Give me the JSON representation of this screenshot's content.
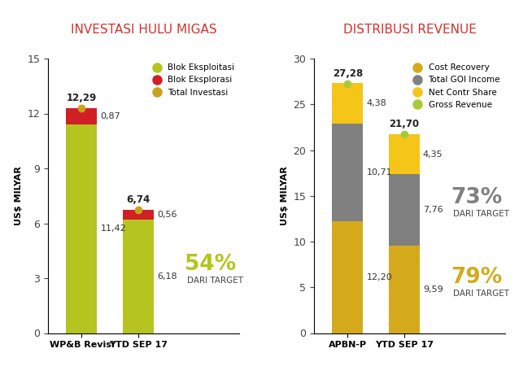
{
  "chart_data": [
    {
      "type": "bar",
      "title": "INVESTASI HULU MIGAS",
      "y_label": "US$ MILYAR",
      "stacked": true,
      "data_labels": true,
      "legend": "upper right",
      "grid": false,
      "categories": [
        "WP&B Revisi",
        "YTD SEP 17"
      ],
      "series": [
        {
          "name": "Blok Eksploitasi",
          "color": "#b5c41e",
          "values": [
            11.42,
            6.18
          ],
          "value_labels": [
            "11,42",
            "6,18"
          ]
        },
        {
          "name": "Blok Eksplorasi",
          "color": "#d11f26",
          "values": [
            0.87,
            0.56
          ],
          "value_labels": [
            "0,87",
            "0,56"
          ]
        },
        {
          "name": "Total Investasi",
          "color": "#c9a21c",
          "type": "point",
          "marker": "o",
          "values": [
            12.29,
            6.74
          ],
          "value_labels": [
            "12,29",
            "6,74"
          ]
        }
      ],
      "ylim": [
        0,
        15
      ],
      "yticks": [
        0,
        3,
        6,
        9,
        12,
        15
      ],
      "annotations": [
        {
          "text": "54%",
          "subtext": "DARI TARGET",
          "series": "Blok Eksploitasi",
          "category": "YTD SEP 17",
          "color": "#b5c41e"
        }
      ]
    },
    {
      "type": "bar",
      "title": "DISTRIBUSI REVENUE",
      "y_label": "US$ MILYAR",
      "stacked": true,
      "data_labels": true,
      "legend": "upper right",
      "grid": false,
      "categories": [
        "APBN-P",
        "YTD SEP 17"
      ],
      "series": [
        {
          "name": "Cost Recovery",
          "color": "#d4aa1c",
          "values": [
            12.2,
            9.59
          ],
          "value_labels": [
            "12,20",
            "9,59"
          ]
        },
        {
          "name": "Total GOI Income",
          "color": "#808080",
          "values": [
            10.71,
            7.76
          ],
          "value_labels": [
            "10,71",
            "7,76"
          ]
        },
        {
          "name": "Net Contr Share",
          "color": "#f5c518",
          "values": [
            4.38,
            4.35
          ],
          "value_labels": [
            "4,38",
            "4,35"
          ]
        },
        {
          "name": "Gross Revenue",
          "color": "#a8c93a",
          "type": "point",
          "marker": "o",
          "values": [
            27.28,
            21.7
          ],
          "value_labels": [
            "27,28",
            "21,70"
          ]
        }
      ],
      "ylim": [
        0,
        30
      ],
      "yticks": [
        0,
        5,
        10,
        15,
        20,
        25,
        30
      ],
      "annotations": [
        {
          "text": "73%",
          "subtext": "DARI TARGET",
          "series": "Total GOI Income",
          "category": "YTD SEP 17",
          "color": "#808080"
        },
        {
          "text": "79%",
          "subtext": "DARI TARGET",
          "series": "Cost Recovery",
          "category": "YTD SEP 17",
          "color": "#d4aa1c"
        }
      ]
    }
  ]
}
